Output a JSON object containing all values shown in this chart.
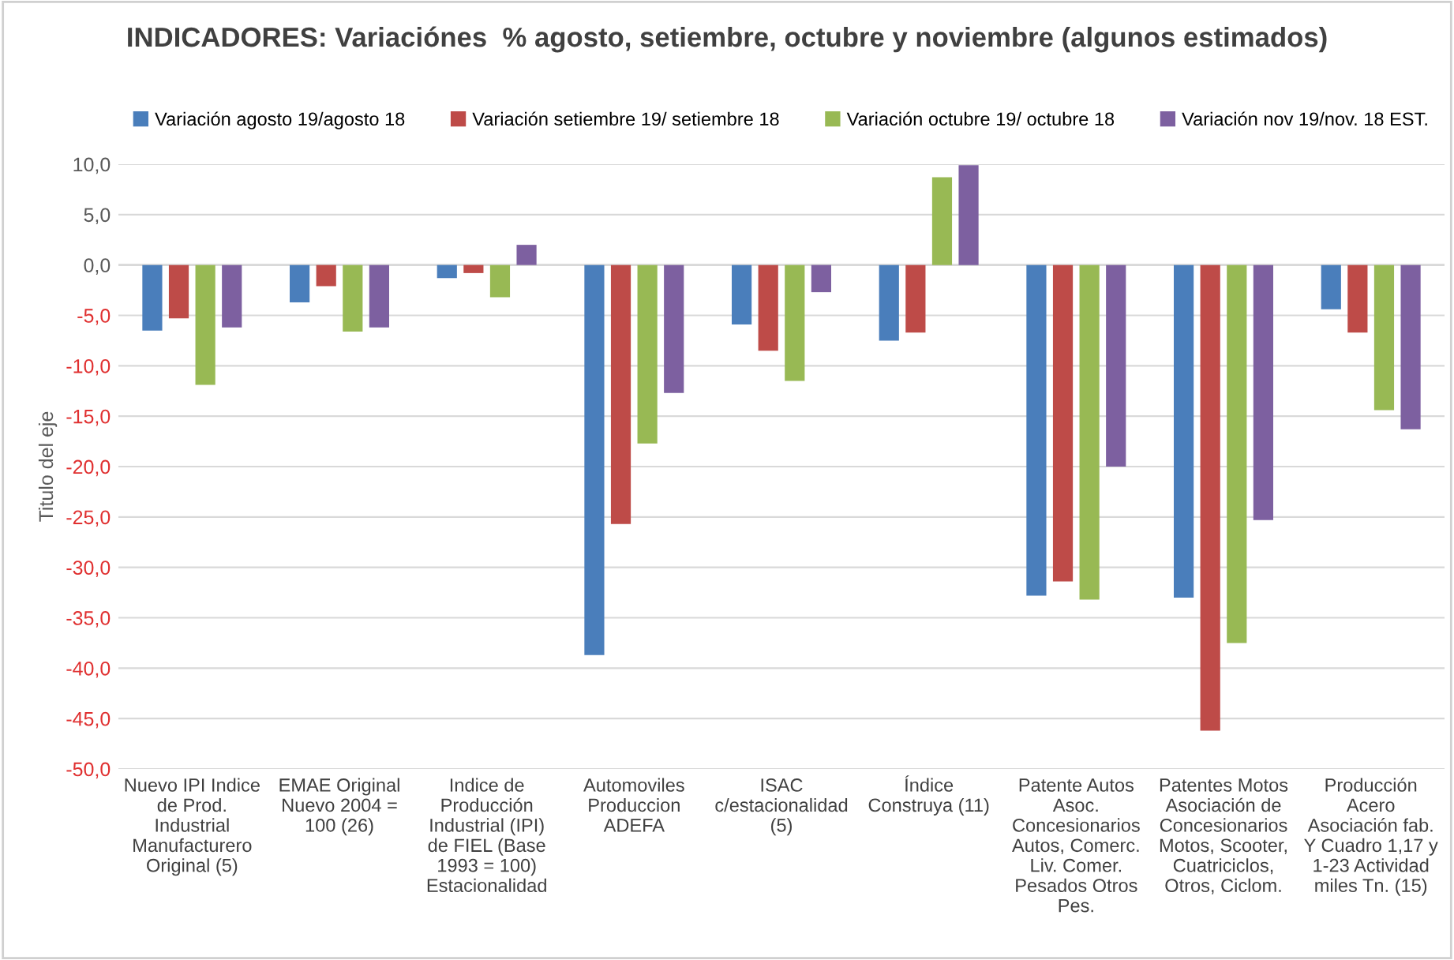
{
  "chart_data": {
    "type": "bar",
    "title": "INDICADORES: Variaciónes  % agosto, setiembre, octubre y noviembre (algunos estimados)",
    "ylabel": "Titulo del eje",
    "categories": [
      "Nuevo IPI Indice de Prod. Industrial Manufacturero Original (5)",
      "EMAE Original Nuevo 2004 = 100 (26)",
      "Indice de Producción Industrial (IPI) de FIEL (Base 1993 = 100) Estacionalidad",
      "Automoviles Produccion ADEFA",
      "ISAC c/estacionalidad (5)",
      "Índice Construya (11)",
      "Patente Autos Asoc. Concesionarios Autos, Comerc. Liv. Comer. Pesados Otros Pes.",
      "Patentes Motos Asociación de Concesionarios Motos, Scooter, Cuatriciclos, Otros, Ciclom.",
      "Producción Acero Asociación fab. Y Cuadro 1,17 y 1-23 Actividad miles Tn. (15)"
    ],
    "series": [
      {
        "name": "Variación agosto 19/agosto 18",
        "color": "#4a7ebb",
        "values": [
          -6.5,
          -3.7,
          -1.3,
          -38.7,
          -5.9,
          -7.5,
          -32.8,
          -33.0,
          -4.4
        ]
      },
      {
        "name": "Variación setiembre 19/ setiembre 18",
        "color": "#be4b48",
        "values": [
          -5.3,
          -2.1,
          -0.8,
          -25.7,
          -8.5,
          -6.7,
          -31.4,
          -46.2,
          -6.7
        ]
      },
      {
        "name": "Variación octubre 19/ octubre 18",
        "color": "#98b954",
        "values": [
          -11.9,
          -6.6,
          -3.2,
          -17.7,
          -11.5,
          8.7,
          -33.2,
          -37.5,
          -14.4
        ]
      },
      {
        "name": "Variación nov 19/nov. 18 EST.",
        "color": "#7d60a0",
        "values": [
          -6.2,
          -6.2,
          2.0,
          -12.7,
          -2.7,
          9.9,
          -20.0,
          -25.3,
          -16.3
        ]
      }
    ],
    "ylim": [
      -50,
      10
    ],
    "yticks": [
      {
        "value": 10,
        "label": "10,0"
      },
      {
        "value": 5,
        "label": "5,0"
      },
      {
        "value": 0,
        "label": "0,0"
      },
      {
        "value": -5,
        "label": "-5,0"
      },
      {
        "value": -10,
        "label": "-10,0"
      },
      {
        "value": -15,
        "label": "-15,0"
      },
      {
        "value": -20,
        "label": "-20,0"
      },
      {
        "value": -25,
        "label": "-25,0"
      },
      {
        "value": -30,
        "label": "-30,0"
      },
      {
        "value": -35,
        "label": "-35,0"
      },
      {
        "value": -40,
        "label": "-40,0"
      },
      {
        "value": -45,
        "label": "-45,0"
      },
      {
        "value": -50,
        "label": "-50,0"
      }
    ],
    "grid": "y",
    "legend": "top"
  }
}
